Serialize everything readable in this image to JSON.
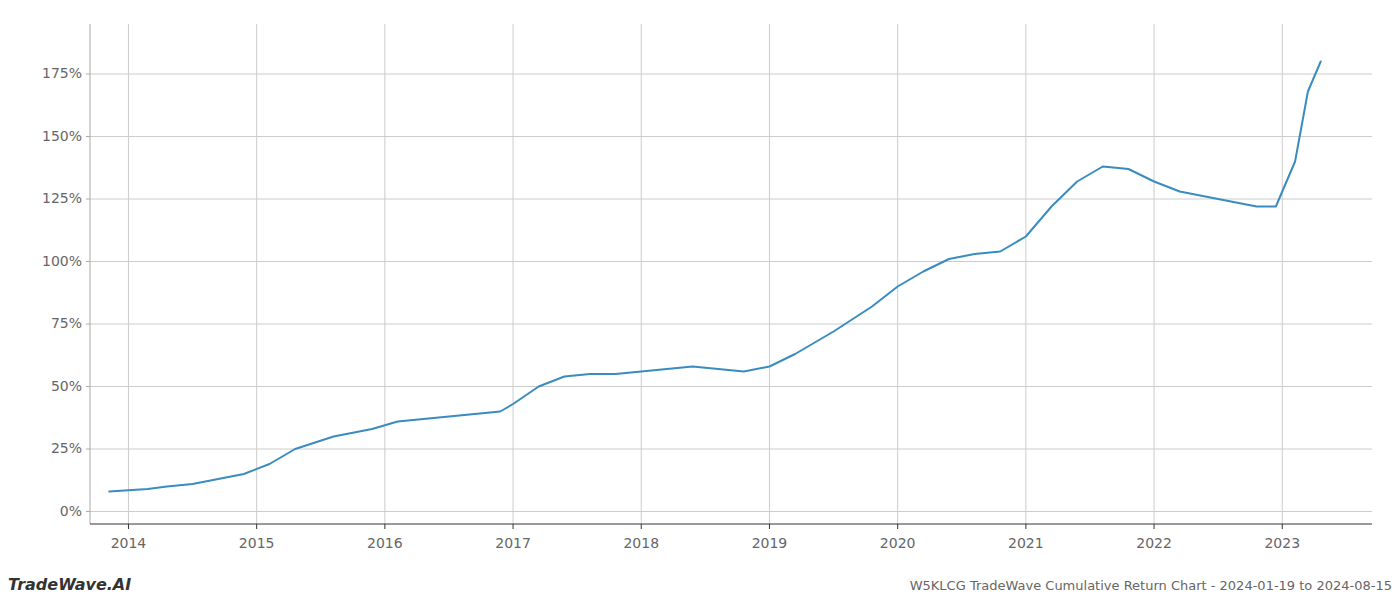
{
  "chart_data": {
    "type": "line",
    "title": "W5KLCG TradeWave Cumulative Return Chart - 2024-01-19 to 2024-08-15",
    "annotations": [
      "TradeWave.AI"
    ],
    "x": [
      2013.85,
      2014.0,
      2014.15,
      2014.3,
      2014.5,
      2014.7,
      2014.9,
      2015.1,
      2015.3,
      2015.6,
      2015.9,
      2016.1,
      2016.3,
      2016.5,
      2016.7,
      2016.9,
      2017.0,
      2017.2,
      2017.4,
      2017.6,
      2017.8,
      2018.0,
      2018.2,
      2018.4,
      2018.6,
      2018.8,
      2019.0,
      2019.2,
      2019.5,
      2019.8,
      2020.0,
      2020.2,
      2020.4,
      2020.6,
      2020.8,
      2021.0,
      2021.2,
      2021.4,
      2021.6,
      2021.8,
      2022.0,
      2022.2,
      2022.4,
      2022.6,
      2022.8,
      2022.95,
      2023.1,
      2023.2,
      2023.3
    ],
    "values": [
      8,
      8.5,
      9,
      10,
      11,
      13,
      15,
      19,
      25,
      30,
      33,
      36,
      37,
      38,
      39,
      40,
      43,
      50,
      54,
      55,
      55,
      56,
      57,
      58,
      57,
      56,
      58,
      63,
      72,
      82,
      90,
      96,
      101,
      103,
      104,
      110,
      122,
      132,
      138,
      137,
      132,
      128,
      126,
      124,
      122,
      122,
      140,
      168,
      180
    ],
    "color": "#3a8cbf",
    "xlim": [
      2013.7,
      2023.7
    ],
    "xticks": [
      2014,
      2015,
      2016,
      2017,
      2018,
      2019,
      2020,
      2021,
      2022,
      2023
    ],
    "ylim": [
      -5,
      195
    ],
    "yticks": [
      {
        "value": 0,
        "label": "0%"
      },
      {
        "value": 25,
        "label": "25%"
      },
      {
        "value": 50,
        "label": "50%"
      },
      {
        "value": 75,
        "label": "75%"
      },
      {
        "value": 100,
        "label": "100%"
      },
      {
        "value": 125,
        "label": "125%"
      },
      {
        "value": 150,
        "label": "150%"
      },
      {
        "value": 175,
        "label": "175%"
      }
    ],
    "grid": true
  }
}
